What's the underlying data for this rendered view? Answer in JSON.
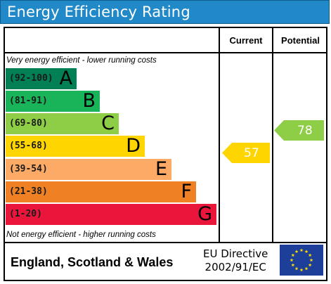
{
  "title": "Energy Efficiency Rating",
  "header": {
    "current": "Current",
    "potential": "Potential"
  },
  "notes": {
    "top": "Very energy efficient - lower running costs",
    "bottom": "Not energy efficient - higher running costs"
  },
  "chart_data": {
    "type": "bar",
    "bands": [
      {
        "range": "(92-100)",
        "letter": "A",
        "color": "#008054"
      },
      {
        "range": "(81-91)",
        "letter": "B",
        "color": "#19b459"
      },
      {
        "range": "(69-80)",
        "letter": "C",
        "color": "#8dce46"
      },
      {
        "range": "(55-68)",
        "letter": "D",
        "color": "#ffd500"
      },
      {
        "range": "(39-54)",
        "letter": "E",
        "color": "#fcaa65"
      },
      {
        "range": "(21-38)",
        "letter": "F",
        "color": "#ef8023"
      },
      {
        "range": "(1-20)",
        "letter": "G",
        "color": "#e9153b"
      }
    ],
    "current": {
      "value": "57",
      "band": "D",
      "color": "#ffd500"
    },
    "potential": {
      "value": "78",
      "band": "C",
      "color": "#8dce46"
    }
  },
  "footer": {
    "region": "England, Scotland & Wales",
    "directive_line1": "EU Directive",
    "directive_line2": "2002/91/EC",
    "flag_icon": "eu-flag-icon"
  }
}
